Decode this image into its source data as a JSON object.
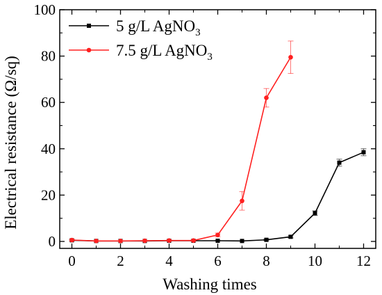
{
  "chart_data": {
    "type": "line",
    "xlabel": "Washing times",
    "ylabel": "Electrical resistance (Ω/sq)",
    "xlim": [
      -0.5,
      12.5
    ],
    "ylim": [
      -3,
      100
    ],
    "x_ticks": [
      0,
      2,
      4,
      6,
      8,
      10,
      12
    ],
    "x_ticks_minor": [
      1,
      3,
      5,
      7,
      9,
      11
    ],
    "y_ticks": [
      0,
      20,
      40,
      60,
      80,
      100
    ],
    "y_ticks_minor": [
      10,
      30,
      50,
      70,
      90
    ],
    "grid": false,
    "legend_position": "top-left",
    "series": [
      {
        "name_main": "5 g/L AgNO",
        "name_sub": "3",
        "color": "#000000",
        "marker": "square",
        "x": [
          0,
          1,
          2,
          3,
          4,
          5,
          6,
          7,
          8,
          9,
          10,
          11,
          12
        ],
        "y": [
          0.5,
          0.2,
          0.2,
          0.2,
          0.3,
          0.3,
          0.3,
          0.2,
          0.7,
          2.0,
          12.2,
          34.0,
          38.5
        ],
        "error": [
          0.3,
          0.1,
          0.1,
          0.1,
          0.1,
          0.1,
          0.1,
          0.1,
          0.4,
          0.5,
          1.0,
          1.5,
          1.5
        ]
      },
      {
        "name_main": "7.5 g/L AgNO",
        "name_sub": "3",
        "color": "#ff2020",
        "marker": "circle",
        "x": [
          0,
          1,
          2,
          3,
          4,
          5,
          6,
          7,
          8,
          9
        ],
        "y": [
          0.6,
          0.2,
          0.2,
          0.3,
          0.4,
          0.4,
          2.8,
          17.5,
          62.0,
          79.5
        ],
        "error": [
          0.4,
          0.1,
          0.1,
          0.1,
          0.3,
          0.3,
          0.8,
          4.0,
          4.0,
          7.0
        ]
      }
    ]
  }
}
